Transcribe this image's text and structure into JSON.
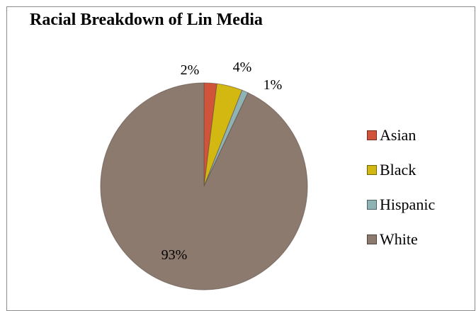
{
  "chart_data": {
    "type": "pie",
    "title": "Racial Breakdown of Lin Media",
    "slices": [
      {
        "name": "Asian",
        "value": 2,
        "label": "2%",
        "color": "#D0533A"
      },
      {
        "name": "Black",
        "value": 4,
        "label": "4%",
        "color": "#D4B812"
      },
      {
        "name": "Hispanic",
        "value": 1,
        "label": "1%",
        "color": "#8FB3B5"
      },
      {
        "name": "White",
        "value": 93,
        "label": "93%",
        "color": "#8C7A6E"
      }
    ],
    "legend_position": "right",
    "start_angle": "12 o'clock",
    "direction": "clockwise"
  }
}
